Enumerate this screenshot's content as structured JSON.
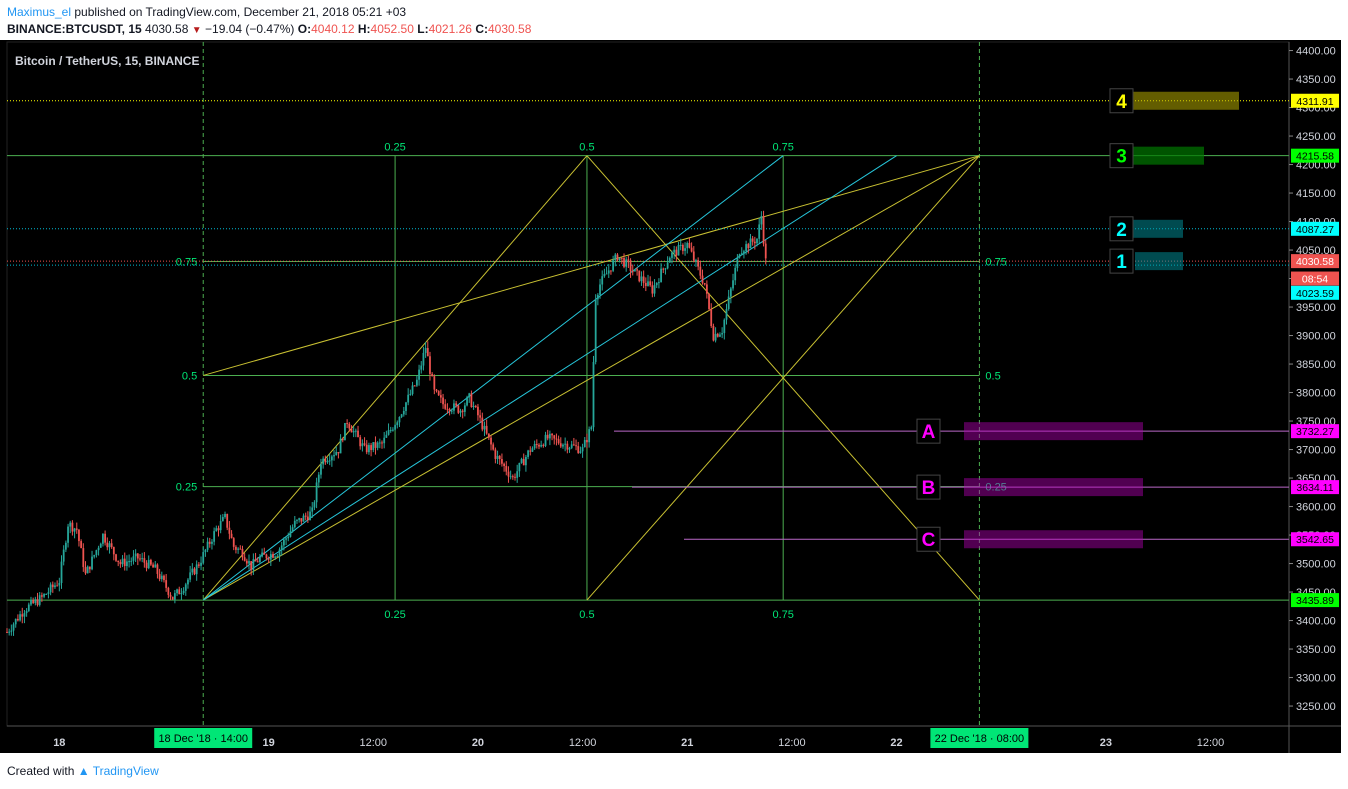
{
  "header": {
    "author": "Maximus_el",
    "published_text": "published on TradingView.com, December 21, 2018 05:21 +03",
    "symbol": "BINANCE:BTCUSDT, 15",
    "last": "4030.58",
    "change": "−19.04 (−0.47%)",
    "o_label": "O:",
    "o": "4040.12",
    "h_label": "H:",
    "h": "4052.50",
    "l_label": "L:",
    "l": "4021.26",
    "c_label": "C:",
    "c": "4030.58"
  },
  "footer": {
    "created_with": "Created with",
    "brand": "TradingView"
  },
  "chart_data": {
    "type": "candlestick",
    "title": "Bitcoin / TetherUS, 15, BINANCE",
    "ylim": [
      3215,
      4415
    ],
    "y_ticks": [
      "4400.00",
      "4350.00",
      "4300.00",
      "4250.00",
      "4200.00",
      "4150.00",
      "4100.00",
      "4050.00",
      "4000.00",
      "3950.00",
      "3900.00",
      "3850.00",
      "3800.00",
      "3750.00",
      "3700.00",
      "3650.00",
      "3600.00",
      "3550.00",
      "3500.00",
      "3450.00",
      "3400.00",
      "3350.00",
      "3300.00",
      "3250.00"
    ],
    "x_ticks": [
      "18",
      "19",
      "12:00",
      "20",
      "12:00",
      "21",
      "12:00",
      "22",
      "23",
      "12:00"
    ],
    "x_range_hours": [
      0,
      147
    ],
    "x_tick_hours": [
      6,
      30,
      42,
      54,
      66,
      78,
      90,
      102,
      126,
      138
    ],
    "bullish_color": "#26a69a",
    "bearish_color": "#ef5350",
    "background": "#000000",
    "grid": false,
    "price_path": [
      [
        0,
        3380
      ],
      [
        2,
        3420
      ],
      [
        4,
        3440
      ],
      [
        6,
        3470
      ],
      [
        7,
        3570
      ],
      [
        8,
        3560
      ],
      [
        9,
        3480
      ],
      [
        11,
        3550
      ],
      [
        13,
        3500
      ],
      [
        15,
        3510
      ],
      [
        17,
        3490
      ],
      [
        19,
        3440
      ],
      [
        20,
        3455
      ],
      [
        22,
        3500
      ],
      [
        24,
        3560
      ],
      [
        25,
        3580
      ],
      [
        26,
        3530
      ],
      [
        27,
        3520
      ],
      [
        28,
        3495
      ],
      [
        29,
        3510
      ],
      [
        31,
        3520
      ],
      [
        33,
        3570
      ],
      [
        35,
        3590
      ],
      [
        36,
        3680
      ],
      [
        38,
        3700
      ],
      [
        39,
        3750
      ],
      [
        41,
        3700
      ],
      [
        43,
        3710
      ],
      [
        45,
        3760
      ],
      [
        47,
        3820
      ],
      [
        48,
        3880
      ],
      [
        49,
        3800
      ],
      [
        50,
        3780
      ],
      [
        52,
        3770
      ],
      [
        53,
        3790
      ],
      [
        54,
        3760
      ],
      [
        56,
        3690
      ],
      [
        58,
        3650
      ],
      [
        60,
        3700
      ],
      [
        62,
        3720
      ],
      [
        64,
        3710
      ],
      [
        66,
        3700
      ],
      [
        67,
        3740
      ],
      [
        67.5,
        3970
      ],
      [
        68,
        3990
      ],
      [
        70,
        4040
      ],
      [
        72,
        4010
      ],
      [
        74,
        3980
      ],
      [
        76,
        4040
      ],
      [
        78,
        4060
      ],
      [
        80,
        3990
      ],
      [
        81,
        3900
      ],
      [
        82,
        3910
      ],
      [
        83,
        3980
      ],
      [
        84,
        4050
      ],
      [
        86,
        4070
      ],
      [
        86.5,
        4110
      ],
      [
        87,
        4030
      ]
    ],
    "fib_level_labels": [
      "0.25",
      "0.5",
      "0.75"
    ],
    "fib_price_levels": [
      {
        "label": "0.75",
        "price": 4030
      },
      {
        "label": "0.5",
        "price": 3830
      },
      {
        "label": "0.25",
        "price": 3635
      }
    ],
    "fib_time_lines_hours": [
      22.5,
      44.5,
      66.5,
      89,
      111.5
    ],
    "price_labels": [
      {
        "value": "4311.91",
        "price": 4311.91,
        "color": "#ffff00"
      },
      {
        "value": "4215.58",
        "price": 4215.58,
        "color": "#00ff00"
      },
      {
        "value": "4087.27",
        "price": 4087.27,
        "color": "#00ffff"
      },
      {
        "value": "4030.58",
        "price": 4030.58,
        "color": "#ef5350"
      },
      {
        "value": "08:54",
        "price": 4000,
        "color": "#ef5350"
      },
      {
        "value": "4023.59",
        "price": 3975,
        "color": "#00ffff"
      },
      {
        "value": "3732.27",
        "price": 3732.27,
        "color": "#ff00ff"
      },
      {
        "value": "3634.11",
        "price": 3634.11,
        "color": "#ff00ff"
      },
      {
        "value": "3542.65",
        "price": 3542.65,
        "color": "#ff00ff"
      },
      {
        "value": "3435.89",
        "price": 3435.89,
        "color": "#00ff00"
      }
    ],
    "targets": [
      {
        "label": "4",
        "price": 4311.91,
        "color": "#ffff00"
      },
      {
        "label": "3",
        "price": 4215.58,
        "color": "#00ff00"
      },
      {
        "label": "2",
        "price": 4087.27,
        "color": "#00ffff"
      },
      {
        "label": "1",
        "price": 4030.58,
        "color": "#00ffff"
      }
    ],
    "supports": [
      {
        "label": "A",
        "price": 3732.27
      },
      {
        "label": "B",
        "price": 3634.11
      },
      {
        "label": "C",
        "price": 3542.65
      }
    ],
    "time_labels": [
      {
        "text": "18 Dec '18 · 14:00",
        "hour": 22.5
      },
      {
        "text": "22 Dec '18 · 08:00",
        "hour": 111.5
      }
    ]
  }
}
